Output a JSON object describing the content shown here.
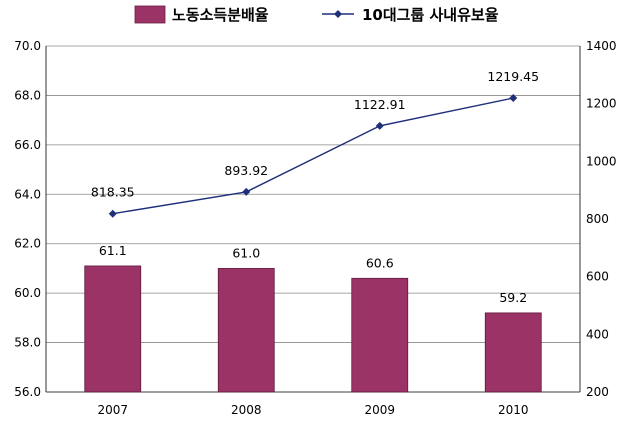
{
  "chart_data": {
    "type": "bar+line",
    "categories": [
      "2007",
      "2008",
      "2009",
      "2010"
    ],
    "series": [
      {
        "name": "노동소득분배율",
        "kind": "bar",
        "axis": "left",
        "values": [
          61.1,
          61.0,
          60.6,
          59.2
        ],
        "labels": [
          "61.1",
          "61.0",
          "60.6",
          "59.2"
        ],
        "color": "#9B3366"
      },
      {
        "name": "10대그룹 사내유보율",
        "kind": "line",
        "axis": "right",
        "values": [
          818.35,
          893.92,
          1122.91,
          1219.45
        ],
        "labels": [
          "818.35",
          "893.92",
          "1122.91",
          "1219.45"
        ],
        "color": "#1F2F7A"
      }
    ],
    "y_left": {
      "min": 56.0,
      "max": 70.0,
      "ticks": [
        "56.0",
        "58.0",
        "60.0",
        "62.0",
        "64.0",
        "66.0",
        "68.0",
        "70.0"
      ]
    },
    "y_right": {
      "min": 200,
      "max": 1400,
      "ticks": [
        "200",
        "400",
        "600",
        "800",
        "1000",
        "1200",
        "1400"
      ]
    },
    "grid": "horizontal",
    "legend_position": "top"
  }
}
